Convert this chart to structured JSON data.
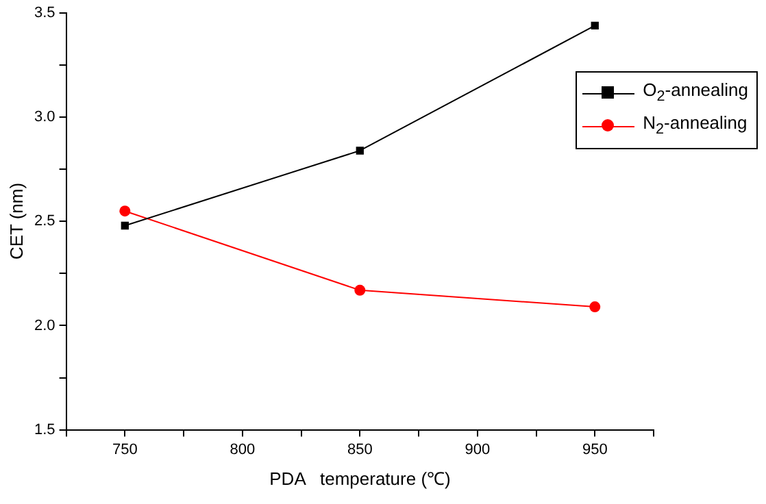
{
  "chart_data": {
    "type": "line",
    "xlabel": "PDA   temperature (℃)",
    "ylabel": "CET (nm)",
    "x": [
      750,
      850,
      950
    ],
    "series": [
      {
        "name": "O$_{2}$-annealing",
        "color": "#000000",
        "marker": "square",
        "values": [
          2.48,
          2.84,
          3.44
        ]
      },
      {
        "name": "N$_{2}$-annealing",
        "color": "#ff0000",
        "marker": "circle",
        "values": [
          2.55,
          2.17,
          2.09
        ]
      }
    ],
    "xlim": [
      725,
      975
    ],
    "xticks": [
      {
        "value": 725,
        "label": null
      },
      750,
      {
        "value": 775,
        "label": null
      },
      800,
      {
        "value": 825,
        "label": null
      },
      850,
      {
        "value": 875,
        "label": null
      },
      900,
      {
        "value": 925,
        "label": null
      },
      950,
      {
        "value": 975,
        "label": null
      }
    ],
    "ylim": [
      1.5,
      3.5
    ],
    "yticks": [
      {
        "value": 1.5,
        "label": "1.5"
      },
      {
        "value": 1.75,
        "label": null
      },
      {
        "value": 2,
        "label": "2.0"
      },
      {
        "value": 2.25,
        "label": null
      },
      {
        "value": 2.5,
        "label": "2.5"
      },
      {
        "value": 2.75,
        "label": null
      },
      {
        "value": 3,
        "label": "3.0"
      },
      {
        "value": 3.25,
        "label": null
      },
      {
        "value": 3.5,
        "label": "3.5"
      }
    ],
    "grid": false,
    "legend": "top right"
  }
}
